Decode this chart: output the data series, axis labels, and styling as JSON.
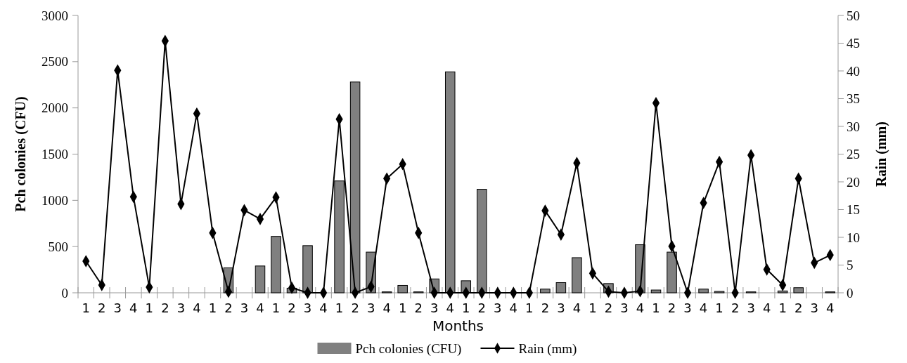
{
  "chart_data": {
    "type": "bar",
    "xlabel": "Months",
    "ylabel": "Pch colonies (CFU)",
    "y2label": "Rain (mm)",
    "categories": [
      "1",
      "2",
      "3",
      "4",
      "1",
      "2",
      "3",
      "4",
      "1",
      "2",
      "3",
      "4",
      "1",
      "2",
      "3",
      "4",
      "1",
      "2",
      "3",
      "4",
      "1",
      "2",
      "3",
      "4",
      "1",
      "2",
      "3",
      "4",
      "1",
      "2",
      "3",
      "4",
      "1",
      "2",
      "3",
      "4",
      "1",
      "2",
      "3",
      "4",
      "1",
      "2",
      "3",
      "4",
      "1",
      "2",
      "3",
      "4"
    ],
    "series": [
      {
        "name": "Pch colonies (CFU)",
        "color": "#808080",
        "values": [
          0,
          0,
          0,
          0,
          0,
          0,
          0,
          0,
          0,
          270,
          0,
          290,
          610,
          50,
          510,
          null,
          1210,
          2280,
          440,
          10,
          80,
          10,
          150,
          2390,
          130,
          1120,
          0,
          0,
          0,
          40,
          110,
          380,
          0,
          100,
          null,
          520,
          30,
          440,
          0,
          40,
          15,
          0,
          10,
          0,
          20,
          55,
          0,
          10
        ]
      },
      {
        "name": "Rain (mm)",
        "type": "line",
        "axis": "y2",
        "color": "#000000",
        "values": [
          5.7,
          1.4,
          40.1,
          17.3,
          1.0,
          45.4,
          16.0,
          32.3,
          10.8,
          0.2,
          14.9,
          13.3,
          17.2,
          0.9,
          0,
          0,
          31.3,
          0,
          1.1,
          20.6,
          23.2,
          10.8,
          0,
          0,
          0,
          0,
          0,
          0,
          0,
          14.8,
          10.5,
          23.4,
          3.5,
          0.2,
          0,
          0.3,
          34.2,
          8.4,
          0,
          16.2,
          23.6,
          0,
          24.8,
          4.2,
          1.4,
          20.6,
          5.4,
          6.8
        ]
      }
    ],
    "ylim": [
      0,
      3000
    ],
    "yticks": [
      0,
      500,
      1000,
      1500,
      2000,
      2500,
      3000
    ],
    "y2lim": [
      0,
      50
    ],
    "y2ticks": [
      0,
      5,
      10,
      15,
      20,
      25,
      30,
      35,
      40,
      45,
      50
    ],
    "marker": "diamond",
    "legend": "bottom",
    "grid": false
  }
}
